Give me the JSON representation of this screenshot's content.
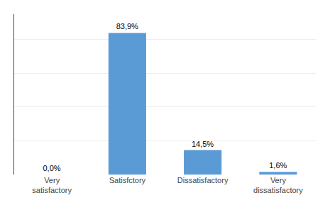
{
  "chart_data": {
    "type": "bar",
    "categories": [
      "Very\nsatisfactory",
      "Satisfctory",
      "Dissatisfactory",
      "Very\ndissatisfactory"
    ],
    "values": [
      0.0,
      83.9,
      14.5,
      1.6
    ],
    "value_labels": [
      "0,0%",
      "83,9%",
      "14,5%",
      "1,6%"
    ],
    "data_labels": true,
    "color": "#5B9BD5",
    "ylim": [
      0,
      95
    ],
    "yticks": [
      0,
      20,
      40,
      60,
      80
    ],
    "grid": true,
    "tick_labels": "x"
  }
}
